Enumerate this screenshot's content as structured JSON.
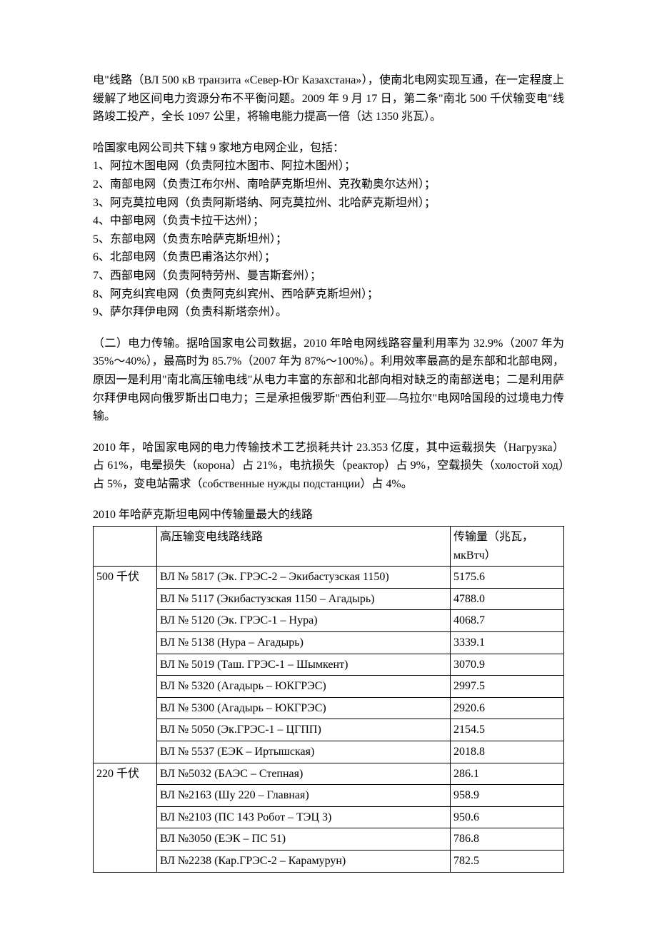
{
  "para1": "电\"线路（ВЛ 500 кВ транзита «Север-Юг Казахстана»），使南北电网实现互通，在一定程度上缓解了地区间电力资源分布不平衡问题。2009 年 9 月 17 日，第二条\"南北 500 千伏输变电\"线路竣工投产，全长 1097 公里，将输电能力提高一倍（达 1350 兆瓦）。",
  "list_intro": "哈国家电网公司共下辖 9 家地方电网企业，包括：",
  "list_items": [
    "1、阿拉木图电网（负责阿拉木图市、阿拉木图州）；",
    "2、南部电网（负责江布尔州、南哈萨克斯坦州、克孜勒奥尔达州）；",
    "3、阿克莫拉电网（负责阿斯塔纳、阿克莫拉州、北哈萨克斯坦州）；",
    "4、中部电网（负责卡拉干达州）；",
    "5、东部电网（负责东哈萨克斯坦州）；",
    "6、北部电网（负责巴甫洛达尔州）；",
    "7、西部电网（负责阿特劳州、曼吉斯套州）；",
    "8、阿克纠宾电网（负责阿克纠宾州、西哈萨克斯坦州）；",
    "9、萨尔拜伊电网（负责科斯塔奈州）。"
  ],
  "para2": "（二）电力传输。据哈国家电公司数据，2010 年哈电网线路容量利用率为 32.9%（2007 年为 35%～40%），最高时为 85.7%（2007 年为 87%～100%）。利用效率最高的是东部和北部电网，原因一是利用\"南北高压输电线\"从电力丰富的东部和北部向相对缺乏的南部送电；二是利用萨尔拜伊电网向俄罗斯出口电力；三是承担俄罗斯\"西伯利亚—乌拉尔\"电网哈国段的过境电力传输。",
  "para3": "2010 年，哈国家电网的电力传输技术工艺损耗共计 23.353 亿度，其中运载损失（Нагрузка）占 61%，电晕损失（корона）占 21%，电抗损失（реактор）占 9%，空载损失（холостой ход）占 5%，变电站需求（собственные нужды подстанции）占 4%。",
  "table": {
    "caption": "2010 年哈萨克斯坦电网中传输量最大的线路",
    "header": {
      "col1": "",
      "col2": "高压输变电线路线路",
      "col3": "传输量（兆瓦，мкВтч）"
    },
    "groups": [
      {
        "label": "500 千伏",
        "rows": [
          {
            "line": "ВЛ № 5817 (Эк. ГРЭС-2 – Экибастузская 1150)",
            "value": "5175.6"
          },
          {
            "line": "ВЛ № 5117 (Экибастузская 1150 – Агадырь)",
            "value": "4788.0"
          },
          {
            "line": "ВЛ № 5120 (Эк. ГРЭС-1 – Нура)",
            "value": "4068.7"
          },
          {
            "line": "ВЛ № 5138 (Нура – Агадырь)",
            "value": "3339.1"
          },
          {
            "line": "ВЛ № 5019 (Таш. ГРЭС-1 – Шымкент)",
            "value": "3070.9"
          },
          {
            "line": "ВЛ № 5320 (Агадырь – ЮКГРЭС)",
            "value": "2997.5"
          },
          {
            "line": "ВЛ № 5300 (Агадырь – ЮКГРЭС)",
            "value": "2920.6"
          },
          {
            "line": "ВЛ № 5050 (Эк.ГРЭС-1 – ЦГПП)",
            "value": "2154.5"
          },
          {
            "line": "ВЛ № 5537 (ЕЭК – Иртышская)",
            "value": "2018.8"
          }
        ]
      },
      {
        "label": "220 千伏",
        "rows": [
          {
            "line": "ВЛ №5032 (БАЭС – Степная)",
            "value": "286.1"
          },
          {
            "line": "ВЛ №2163 (Шу 220 – Главная)",
            "value": "958.9"
          },
          {
            "line": "ВЛ №2103 (ПС 143 Робот – ТЭЦ 3)",
            "value": "950.6"
          },
          {
            "line": "ВЛ №3050 (ЕЭК – ПС 51)",
            "value": "786.8"
          },
          {
            "line": "ВЛ №2238 (Кар.ГРЭС-2 – Карамурун)",
            "value": "782.5"
          }
        ]
      }
    ]
  }
}
